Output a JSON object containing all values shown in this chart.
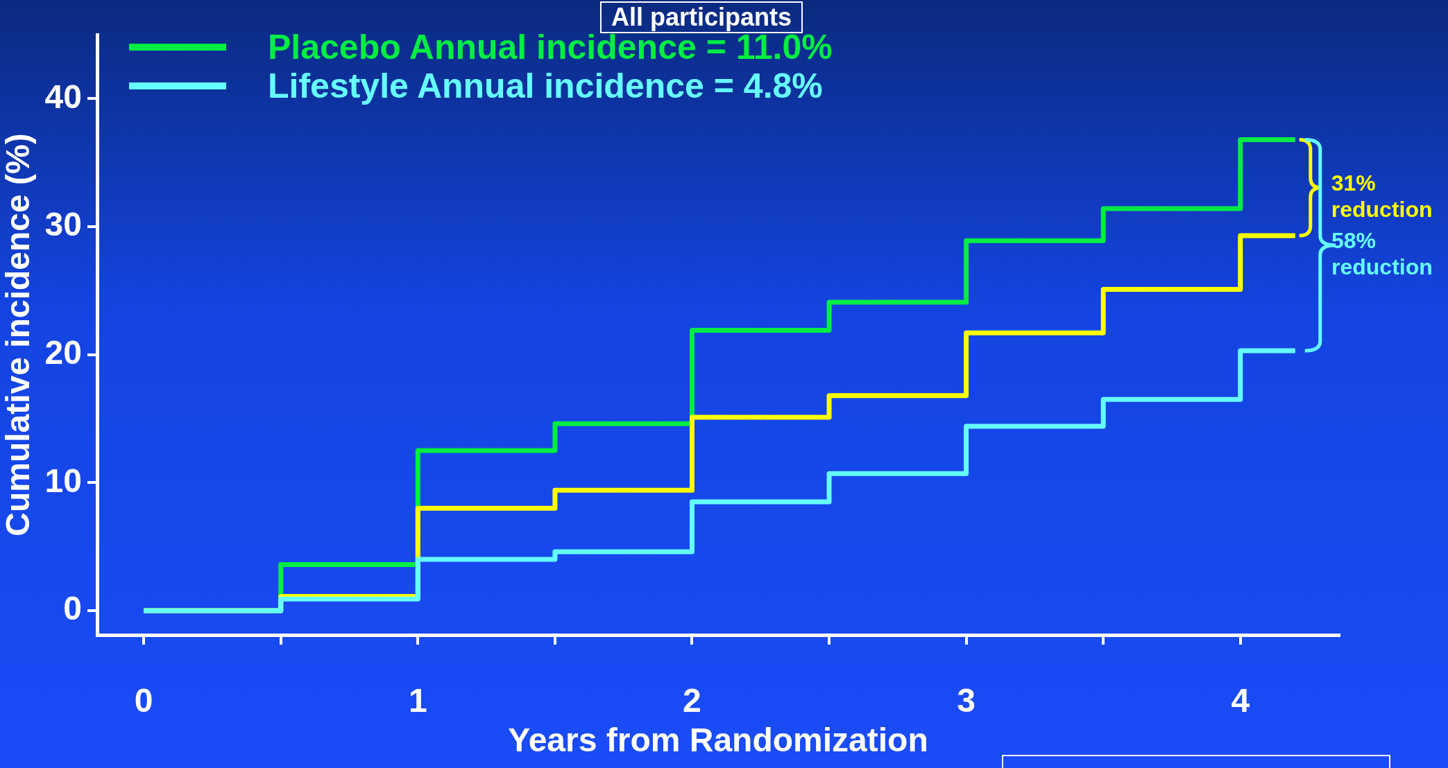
{
  "chart_data": {
    "type": "step",
    "title": "All participants",
    "xlabel": "Years from Randomization",
    "ylabel": "Cumulative incidence (%)",
    "x": [
      0,
      0.5,
      1,
      1.5,
      2,
      2.5,
      3,
      3.5,
      4,
      4.2
    ],
    "series": [
      {
        "name": "Placebo Annual incidence = 11.0%",
        "color": "#00ee44",
        "values": [
          0,
          3.6,
          12.5,
          14.6,
          21.9,
          24.1,
          28.9,
          31.4,
          36.8,
          36.8
        ]
      },
      {
        "color": "#ffff00",
        "values": [
          0,
          1.1,
          8.0,
          9.4,
          15.1,
          16.8,
          21.7,
          25.1,
          29.3,
          29.3
        ]
      },
      {
        "name": "Lifestyle Annual incidence = 4.8%",
        "color": "#66ffff",
        "values": [
          0,
          0.9,
          4.0,
          4.6,
          8.5,
          10.7,
          14.4,
          16.5,
          20.3,
          20.3
        ]
      }
    ],
    "xlim": [
      -0.17,
      4.36
    ],
    "ylim": [
      -1.9,
      45
    ],
    "xticks": [
      0,
      {
        "value": 0.5,
        "label": null
      },
      1,
      {
        "value": 1.5,
        "label": null
      },
      2,
      {
        "value": 2.5,
        "label": null
      },
      3,
      {
        "value": 3.5,
        "label": null
      },
      4
    ],
    "yticks": [
      0,
      10,
      20,
      30,
      40
    ],
    "annotations": [
      "31% reduction",
      "58% reduction"
    ],
    "legend": "top left",
    "grid": false
  }
}
